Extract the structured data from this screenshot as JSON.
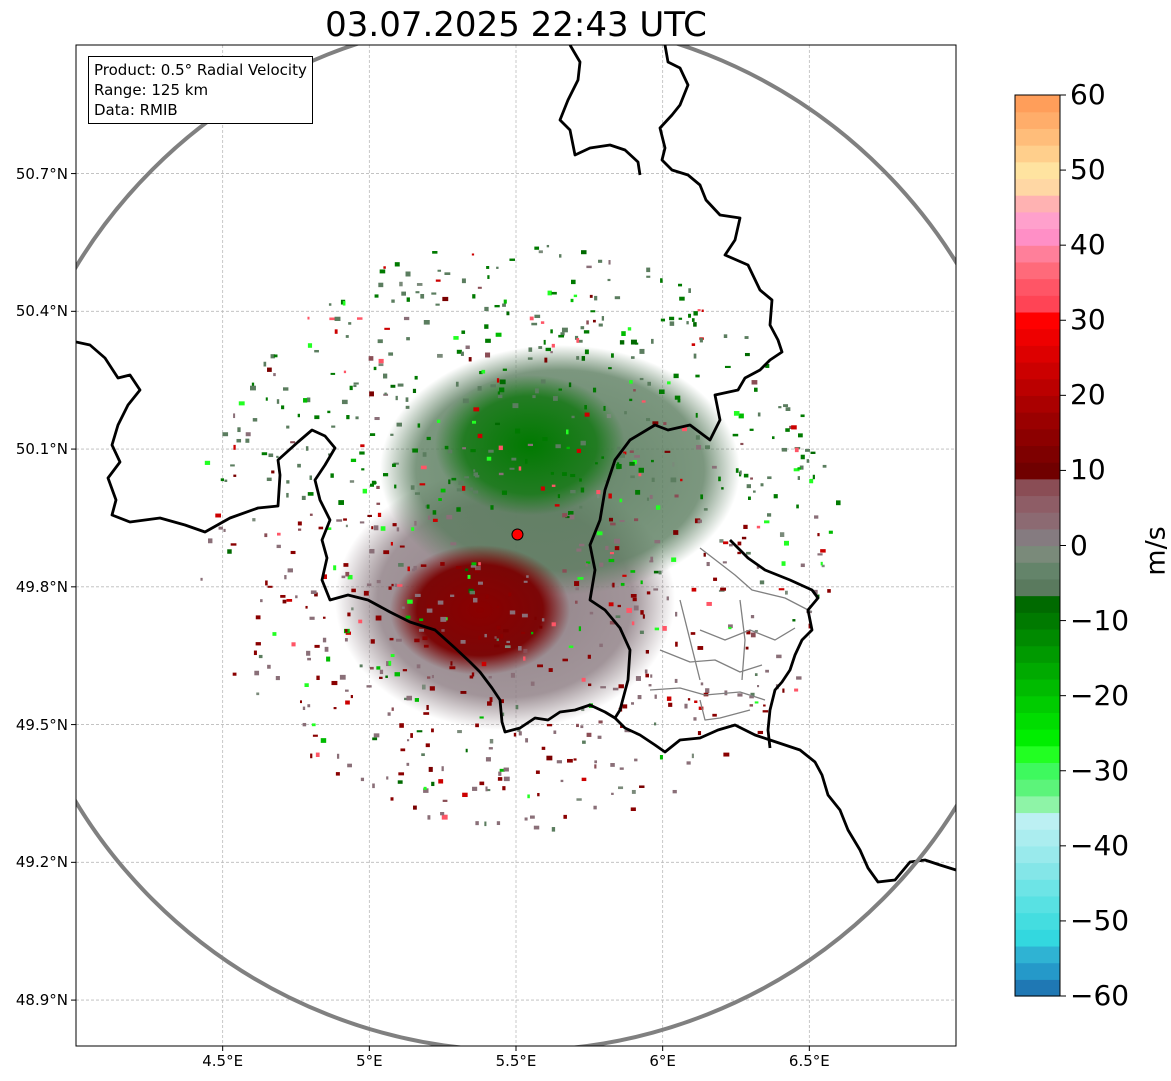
{
  "title": "03.07.2025 22:43 UTC",
  "info": {
    "product": "Product: 0.5° Radial Velocity",
    "range": "Range: 125 km",
    "data": "Data: RMIB"
  },
  "map": {
    "lon_range": [
      4.0,
      7.0
    ],
    "lat_range": [
      48.8,
      50.98
    ],
    "x_ticks": [
      "4.5°E",
      "5°E",
      "5.5°E",
      "6°E",
      "6.5°E"
    ],
    "x_tick_values": [
      4.5,
      5.0,
      5.5,
      6.0,
      6.5
    ],
    "y_ticks": [
      "48.9°N",
      "49.2°N",
      "49.5°N",
      "49.8°N",
      "50.1°N",
      "50.4°N",
      "50.7°N"
    ],
    "y_tick_values": [
      48.9,
      49.2,
      49.5,
      49.8,
      50.1,
      50.4,
      50.7
    ],
    "gridlines": true,
    "radar_site": {
      "lon": 5.505,
      "lat": 49.914
    },
    "range_ring_km": 125,
    "colors": {
      "range_ring": "#808080",
      "border": "#000000",
      "subdivision": "#808080",
      "radar_marker": "#ff0000"
    }
  },
  "colorbar": {
    "label": "m/s",
    "ticks": [
      "60",
      "50",
      "40",
      "30",
      "20",
      "10",
      "0",
      "−10",
      "−20",
      "−30",
      "−40",
      "−50",
      "−60"
    ],
    "min": -60,
    "max": 60,
    "colors_low_to_high": [
      "#1f78b4",
      "#2599c9",
      "#2fb3d3",
      "#33d8df",
      "#44dde0",
      "#58e1e3",
      "#6de4e6",
      "#84e6e8",
      "#99eaec",
      "#abedef",
      "#bcf0f3",
      "#8ef4a7",
      "#5cf47a",
      "#3ef95e",
      "#22ff22",
      "#00ee00",
      "#00dd00",
      "#00cc00",
      "#00bb00",
      "#00aa00",
      "#009a00",
      "#008a00",
      "#007a00",
      "#006a00",
      "#5a7a5e",
      "#64846a",
      "#7a8a7a",
      "#857b80",
      "#8c6a72",
      "#8e5d66",
      "#8a4d55",
      "#700000",
      "#7e0000",
      "#8c0000",
      "#9a0000",
      "#aa0000",
      "#bb0000",
      "#cc0000",
      "#dd0000",
      "#ee0000",
      "#ff0000",
      "#ff4455",
      "#ff5566",
      "#ff6a7a",
      "#ff7f9a",
      "#ff8fc6",
      "#ffa0cc",
      "#ffb2b2",
      "#ffd7a4",
      "#ffe3a0",
      "#ffcf8c",
      "#ffbd7a",
      "#ffad6a",
      "#ff9e5a"
    ]
  }
}
